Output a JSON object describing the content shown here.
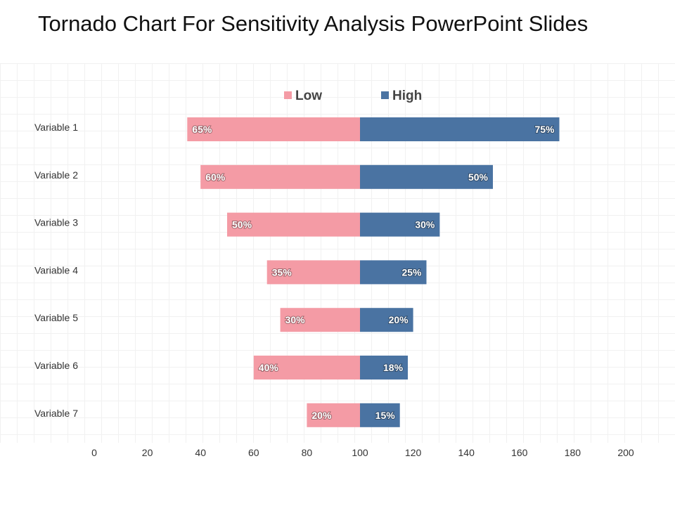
{
  "slide": {
    "title": "Tornado Chart For Sensitivity Analysis PowerPoint Slides"
  },
  "colors": {
    "low": "#f49ba5",
    "high": "#4a73a2"
  },
  "chart_data": {
    "type": "bar",
    "orientation": "horizontal",
    "variant": "tornado",
    "title": "",
    "xlabel": "",
    "ylabel": "",
    "center": 100,
    "xlim": [
      0,
      200
    ],
    "xticks": [
      0,
      20,
      40,
      60,
      80,
      100,
      120,
      140,
      160,
      180,
      200
    ],
    "grid": false,
    "legend_position": "top",
    "categories": [
      "Variable 1",
      "Variable 2",
      "Variable 3",
      "Variable 4",
      "Variable 5",
      "Variable 6",
      "Variable 7"
    ],
    "series": [
      {
        "name": "Low",
        "color": "#f49ba5",
        "values": [
          65,
          60,
          50,
          35,
          30,
          40,
          20
        ],
        "labels": [
          "65%",
          "60%",
          "50%",
          "35%",
          "30%",
          "40%",
          "20%"
        ]
      },
      {
        "name": "High",
        "color": "#4a73a2",
        "values": [
          75,
          50,
          30,
          25,
          20,
          18,
          15
        ],
        "labels": [
          "75%",
          "50%",
          "30%",
          "25%",
          "20%",
          "18%",
          "15%"
        ]
      }
    ]
  }
}
